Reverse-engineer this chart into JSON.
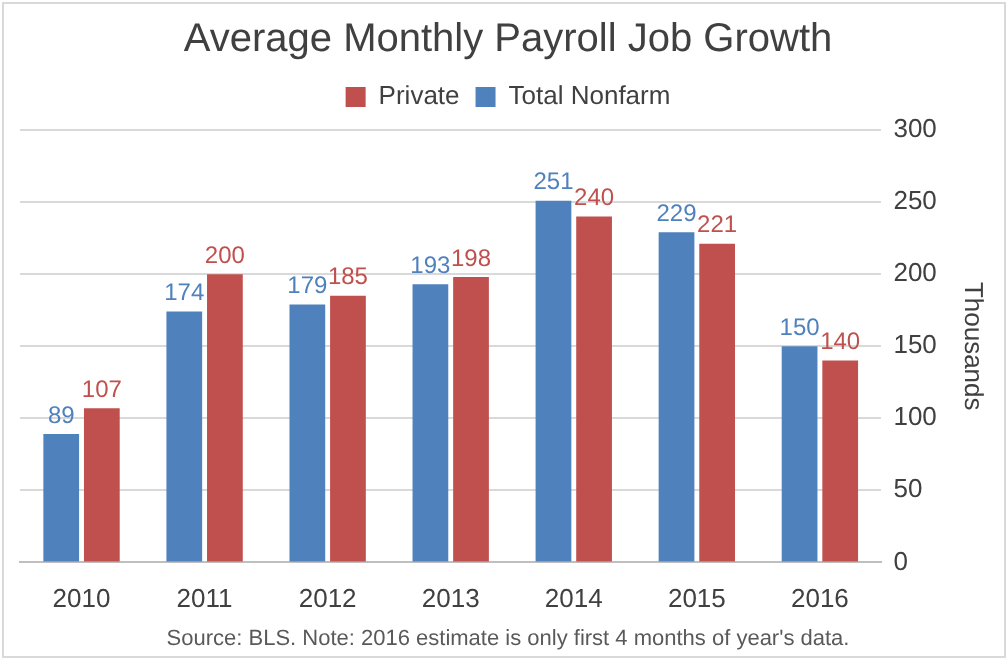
{
  "chart_data": {
    "type": "bar",
    "title": "Average Monthly Payroll Job Growth",
    "ylabel": "Thousands",
    "categories": [
      "2010",
      "2011",
      "2012",
      "2013",
      "2014",
      "2015",
      "2016"
    ],
    "series": [
      {
        "name": "Total Nonfarm",
        "color": "#4f81bd",
        "values": [
          89,
          174,
          179,
          193,
          251,
          229,
          150
        ]
      },
      {
        "name": "Private",
        "color": "#c0504d",
        "values": [
          107,
          200,
          185,
          198,
          240,
          221,
          140
        ]
      }
    ],
    "ylim": [
      0,
      300
    ],
    "yticks": [
      0,
      50,
      100,
      150,
      200,
      250,
      300
    ],
    "grid": "y",
    "legend": "top",
    "data_labels": true,
    "annotations": [
      "Source: BLS. Note: 2016 estimate is only first 4 months of year's data."
    ]
  }
}
